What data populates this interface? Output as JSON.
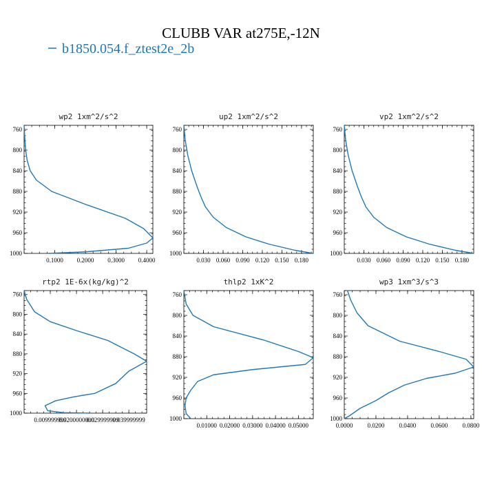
{
  "figure": {
    "title": "CLUBB VAR at275E,-12N",
    "legend_label": "b1850.054.f_ztest2e_2b",
    "line_color": "#1f77b4"
  },
  "chart_data": [
    {
      "type": "line",
      "title": "wp2  1xm^2/s^2",
      "xlim": [
        0.0,
        0.42
      ],
      "ylim": [
        1000,
        752
      ],
      "xticks": [
        0.1,
        0.2,
        0.3,
        0.4
      ],
      "xtick_labels": [
        "0.1000",
        "0.2000",
        "0.3000",
        "0.4000"
      ],
      "yticks": [
        760,
        800,
        840,
        880,
        920,
        960,
        1000
      ],
      "ytick_labels": [
        "760",
        "800",
        "840",
        "880",
        "920",
        "960",
        "1000"
      ],
      "series": [
        {
          "x": [
            0.0,
            0.002,
            0.005,
            0.01,
            0.02,
            0.04,
            0.09,
            0.2,
            0.33,
            0.39,
            0.42,
            0.4,
            0.34,
            0.2,
            0.08
          ],
          "y": [
            752,
            775,
            800,
            820,
            840,
            858,
            880,
            905,
            932,
            952,
            970,
            980,
            990,
            997,
            1000
          ]
        }
      ]
    },
    {
      "type": "line",
      "title": "up2  1xm^2/s^2",
      "xlim": [
        0.0,
        0.198
      ],
      "ylim": [
        1000,
        752
      ],
      "xticks": [
        0.03,
        0.06,
        0.09,
        0.12,
        0.15,
        0.18
      ],
      "xtick_labels": [
        "0.030",
        "0.060",
        "0.090",
        "0.120",
        "0.150",
        "0.180"
      ],
      "yticks": [
        760,
        800,
        840,
        880,
        920,
        960,
        1000
      ],
      "ytick_labels": [
        "760",
        "800",
        "840",
        "880",
        "920",
        "960",
        "1000"
      ],
      "series": [
        {
          "x": [
            0.0,
            0.002,
            0.006,
            0.012,
            0.02,
            0.026,
            0.033,
            0.045,
            0.065,
            0.095,
            0.13,
            0.17,
            0.198
          ],
          "y": [
            752,
            780,
            810,
            840,
            870,
            890,
            910,
            930,
            950,
            968,
            982,
            994,
            1000
          ]
        }
      ]
    },
    {
      "type": "line",
      "title": "vp2  1xm^2/s^2",
      "xlim": [
        0.0,
        0.198
      ],
      "ylim": [
        1000,
        752
      ],
      "xticks": [
        0.03,
        0.06,
        0.09,
        0.12,
        0.15,
        0.18
      ],
      "xtick_labels": [
        "0.030",
        "0.060",
        "0.090",
        "0.120",
        "0.150",
        "0.180"
      ],
      "yticks": [
        760,
        800,
        840,
        880,
        920,
        960,
        1000
      ],
      "ytick_labels": [
        "760",
        "800",
        "840",
        "880",
        "920",
        "960",
        "1000"
      ],
      "series": [
        {
          "x": [
            0.0,
            0.002,
            0.006,
            0.012,
            0.02,
            0.026,
            0.033,
            0.045,
            0.065,
            0.095,
            0.13,
            0.17,
            0.198
          ],
          "y": [
            752,
            780,
            810,
            840,
            870,
            890,
            910,
            930,
            950,
            968,
            982,
            994,
            1000
          ]
        }
      ]
    },
    {
      "type": "line",
      "title": "rtp2  1E-6x(kg/kg)^2",
      "xlim": [
        0.0,
        0.0468
      ],
      "ylim": [
        1000,
        752
      ],
      "xticks": [
        0.01,
        0.02,
        0.03,
        0.04
      ],
      "xtick_labels": [
        "0.009999999",
        "0.0200000000",
        "0.029999999",
        "0.039999999"
      ],
      "yticks": [
        760,
        800,
        840,
        880,
        920,
        960,
        1000
      ],
      "ytick_labels": [
        "760",
        "800",
        "840",
        "880",
        "920",
        "960",
        "1000"
      ],
      "series": [
        {
          "x": [
            0.0,
            0.001,
            0.004,
            0.01,
            0.02,
            0.032,
            0.042,
            0.0468,
            0.04,
            0.035,
            0.027,
            0.019,
            0.012,
            0.008,
            0.009,
            0.015,
            0.025
          ],
          "y": [
            752,
            770,
            795,
            815,
            833,
            853,
            880,
            895,
            915,
            940,
            960,
            967,
            975,
            985,
            995,
            999,
            1000
          ]
        }
      ]
    },
    {
      "type": "line",
      "title": "thlp2  1xK^2",
      "xlim": [
        0.0,
        0.0565
      ],
      "ylim": [
        1000,
        752
      ],
      "xticks": [
        0.01,
        0.02,
        0.03,
        0.04,
        0.05
      ],
      "xtick_labels": [
        "0.01000",
        "0.02000",
        "0.03000",
        "0.04000",
        "0.05000"
      ],
      "yticks": [
        760,
        800,
        840,
        880,
        920,
        960,
        1000
      ],
      "ytick_labels": [
        "760",
        "800",
        "840",
        "880",
        "920",
        "960",
        "1000"
      ],
      "series": [
        {
          "x": [
            0.0,
            0.001,
            0.004,
            0.013,
            0.035,
            0.05,
            0.0565,
            0.053,
            0.03,
            0.013,
            0.006,
            0.003,
            0.001,
            0.0005,
            0.001,
            0.003
          ],
          "y": [
            752,
            778,
            800,
            822,
            848,
            870,
            882,
            895,
            905,
            915,
            928,
            945,
            960,
            975,
            990,
            1000
          ]
        }
      ]
    },
    {
      "type": "line",
      "title": "wp3  1xm^3/s^3",
      "xlim": [
        0.0,
        0.0818
      ],
      "ylim": [
        1000,
        752
      ],
      "xticks": [
        0.0,
        0.02,
        0.04,
        0.06,
        0.08
      ],
      "xtick_labels": [
        "0.0000",
        "0.0200",
        "0.0400",
        "0.0600",
        "0.0800"
      ],
      "yticks": [
        760,
        800,
        840,
        880,
        920,
        960,
        1000
      ],
      "ytick_labels": [
        "760",
        "800",
        "840",
        "880",
        "920",
        "960",
        "1000"
      ],
      "series": [
        {
          "x": [
            0.002,
            0.004,
            0.008,
            0.015,
            0.035,
            0.06,
            0.077,
            0.0818,
            0.07,
            0.052,
            0.038,
            0.028,
            0.02,
            0.01,
            0.003,
            0.0
          ],
          "y": [
            752,
            770,
            795,
            820,
            850,
            870,
            885,
            900,
            912,
            922,
            935,
            950,
            965,
            980,
            995,
            1000
          ]
        }
      ]
    }
  ]
}
